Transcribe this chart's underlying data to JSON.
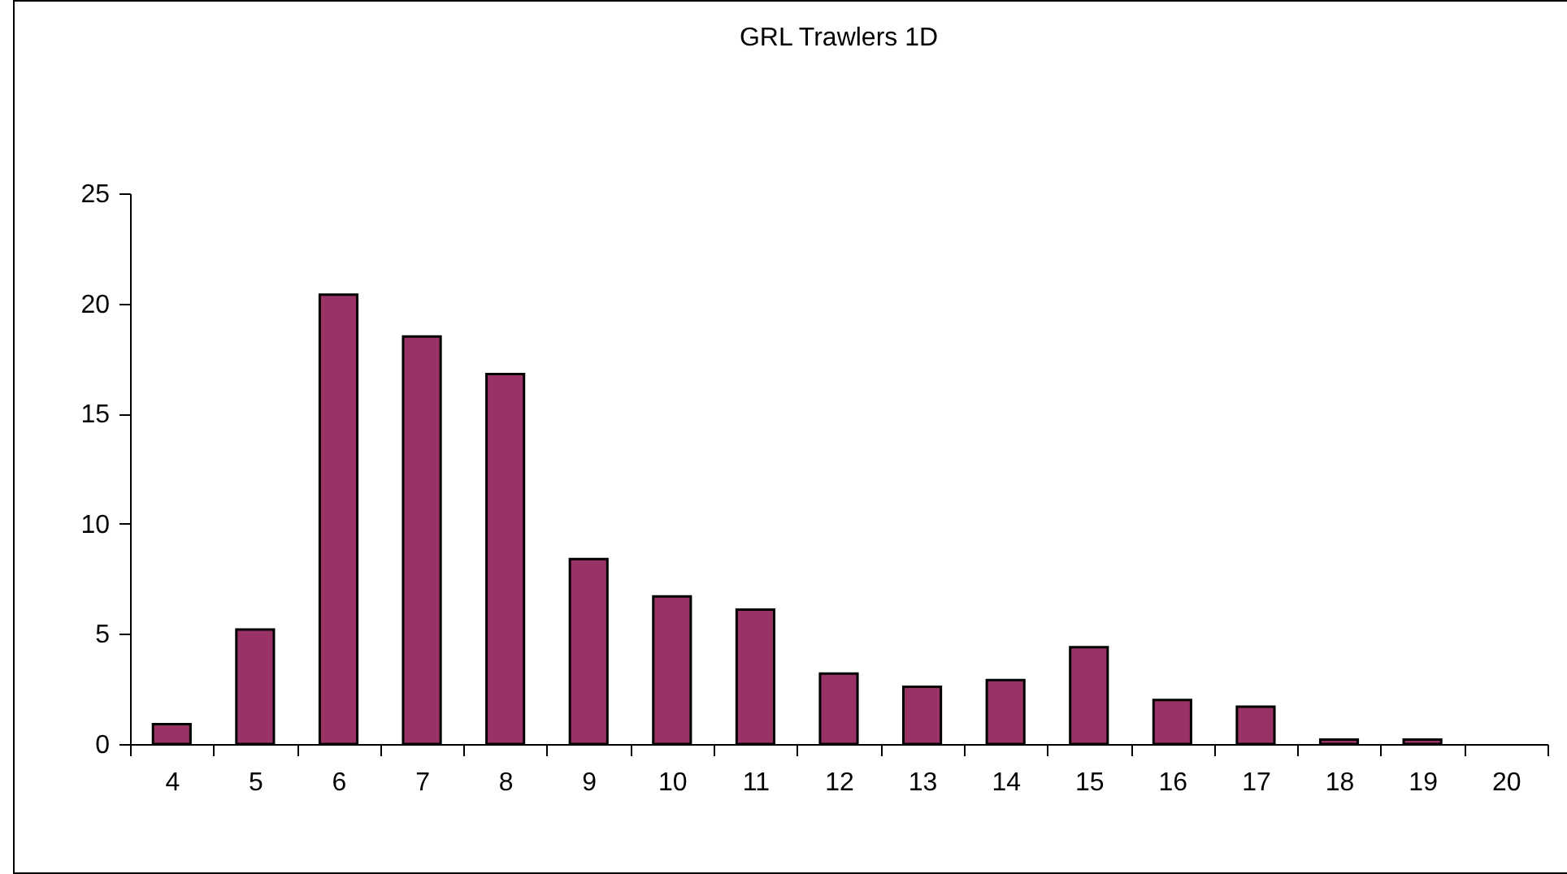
{
  "chart_data": {
    "type": "bar",
    "title": "GRL Trawlers 1D",
    "categories": [
      "4",
      "5",
      "6",
      "7",
      "8",
      "9",
      "10",
      "11",
      "12",
      "13",
      "14",
      "15",
      "16",
      "17",
      "18",
      "19",
      "20"
    ],
    "values": [
      0.9,
      5.2,
      20.4,
      18.5,
      16.8,
      8.4,
      6.7,
      6.1,
      3.2,
      2.6,
      2.9,
      4.4,
      2.0,
      1.7,
      0.2,
      0.2,
      null
    ],
    "color": "#993366",
    "ylim": [
      0,
      25
    ],
    "yticks": [
      0,
      5,
      10,
      15,
      20,
      25
    ],
    "grid": false,
    "legend": false
  }
}
